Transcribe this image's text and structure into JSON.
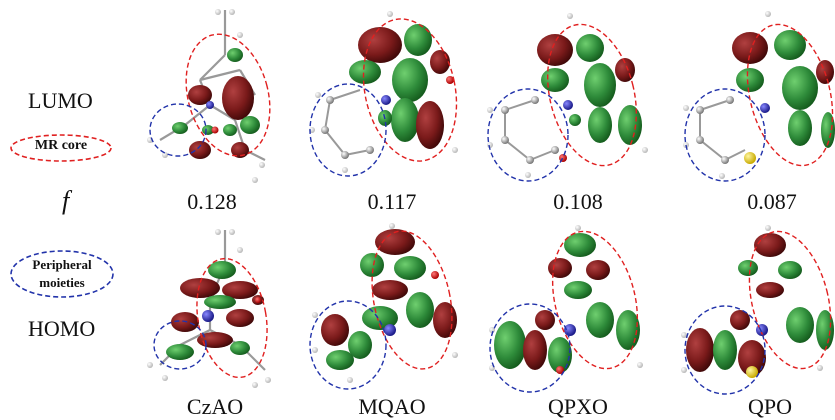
{
  "labels": {
    "lumo": "LUMO",
    "homo": "HOMO",
    "f_symbol": "f",
    "mr_core": "MR core",
    "peripheral_line1": "Peripheral",
    "peripheral_line2": "moieties"
  },
  "molecules": [
    {
      "name": "CzAO",
      "f": "0.128"
    },
    {
      "name": "MQAO",
      "f": "0.117"
    },
    {
      "name": "QPXO",
      "f": "0.108"
    },
    {
      "name": "QPO",
      "f": "0.087"
    }
  ],
  "colors": {
    "mr_core_outline": "#e02020",
    "peripheral_outline": "#2233aa",
    "orbital_positive": "#2e8b3a",
    "orbital_negative": "#7a1a1a",
    "carbon_atom": "#9a9a9a",
    "hydrogen_atom": "#e8e8e8",
    "nitrogen_atom": "#2222aa",
    "oxygen_atom": "#dd1111",
    "sulfur_atom": "#e8d020"
  }
}
